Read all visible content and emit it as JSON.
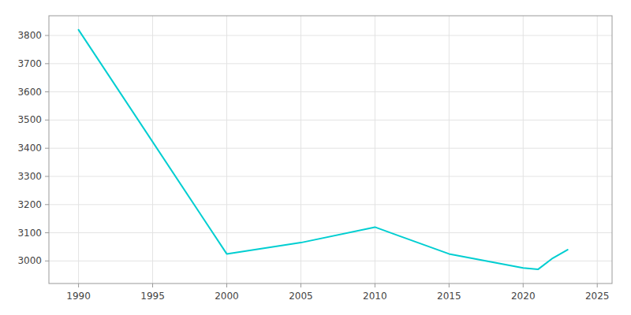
{
  "chart_data": {
    "type": "line",
    "x": [
      1990,
      2000,
      2005,
      2010,
      2015,
      2020,
      2021,
      2022,
      2023
    ],
    "values": [
      3820,
      3025,
      3065,
      3120,
      3025,
      2975,
      2970,
      3010,
      3040
    ],
    "color": "#00CED1",
    "xlim": [
      1988,
      2026
    ],
    "ylim": [
      2920,
      3870
    ],
    "xticks": [
      1990,
      1995,
      2000,
      2005,
      2010,
      2015,
      2020,
      2025
    ],
    "yticks": [
      3000,
      3100,
      3200,
      3300,
      3400,
      3500,
      3600,
      3700,
      3800
    ],
    "grid": true
  }
}
